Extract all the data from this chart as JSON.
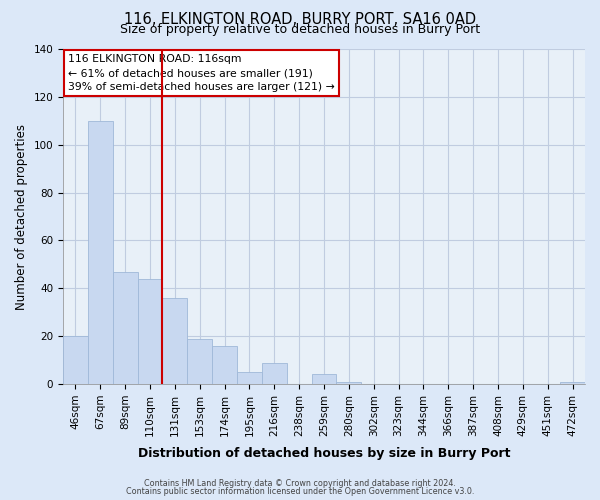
{
  "title": "116, ELKINGTON ROAD, BURRY PORT, SA16 0AD",
  "subtitle": "Size of property relative to detached houses in Burry Port",
  "xlabel": "Distribution of detached houses by size in Burry Port",
  "ylabel": "Number of detached properties",
  "bar_labels": [
    "46sqm",
    "67sqm",
    "89sqm",
    "110sqm",
    "131sqm",
    "153sqm",
    "174sqm",
    "195sqm",
    "216sqm",
    "238sqm",
    "259sqm",
    "280sqm",
    "302sqm",
    "323sqm",
    "344sqm",
    "366sqm",
    "387sqm",
    "408sqm",
    "429sqm",
    "451sqm",
    "472sqm"
  ],
  "bar_values": [
    20,
    110,
    47,
    44,
    36,
    19,
    16,
    5,
    9,
    0,
    4,
    1,
    0,
    0,
    0,
    0,
    0,
    0,
    0,
    0,
    1
  ],
  "bar_color": "#c8d8f0",
  "bar_edge_color": "#a0b8d8",
  "vline_color": "#cc0000",
  "vline_index": 3,
  "ylim": [
    0,
    140
  ],
  "yticks": [
    0,
    20,
    40,
    60,
    80,
    100,
    120,
    140
  ],
  "annotation_line1": "116 ELKINGTON ROAD: 116sqm",
  "annotation_line2": "← 61% of detached houses are smaller (191)",
  "annotation_line3": "39% of semi-detached houses are larger (121) →",
  "footnote1": "Contains HM Land Registry data © Crown copyright and database right 2024.",
  "footnote2": "Contains public sector information licensed under the Open Government Licence v3.0.",
  "fig_bg_color": "#dce8f8",
  "plot_bg_color": "#e8f0f8",
  "grid_color": "#c0cce0",
  "title_fontsize": 10.5,
  "xlabel_fontsize": 9,
  "ylabel_fontsize": 8.5,
  "tick_fontsize": 7.5
}
